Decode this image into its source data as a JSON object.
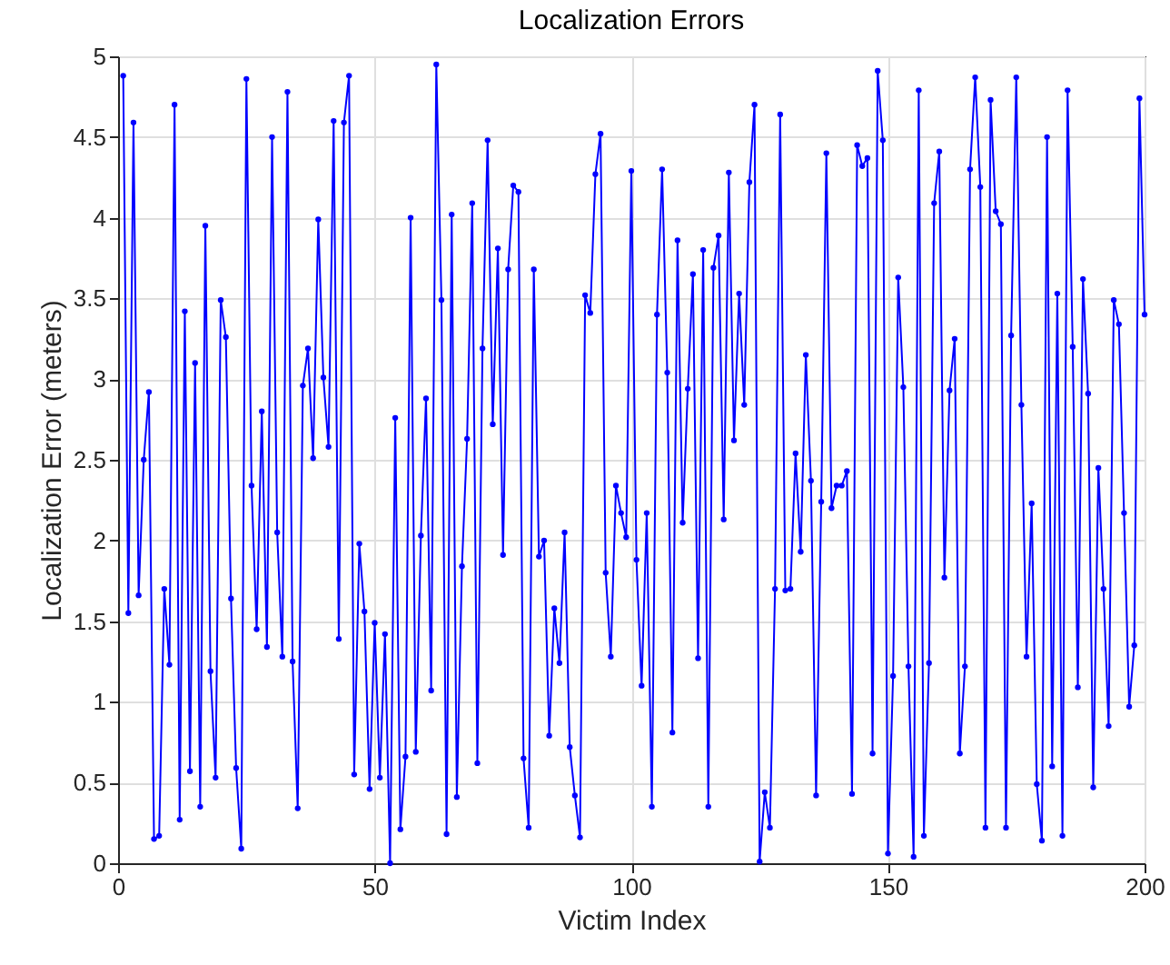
{
  "chart_data": {
    "type": "line",
    "title": "Localization Errors",
    "xlabel": "Victim Index",
    "ylabel": "Localization Error (meters)",
    "x": [
      1,
      2,
      3,
      4,
      5,
      6,
      7,
      8,
      9,
      10,
      11,
      12,
      13,
      14,
      15,
      16,
      17,
      18,
      19,
      20,
      21,
      22,
      23,
      24,
      25,
      26,
      27,
      28,
      29,
      30,
      31,
      32,
      33,
      34,
      35,
      36,
      37,
      38,
      39,
      40,
      41,
      42,
      43,
      44,
      45,
      46,
      47,
      48,
      49,
      50,
      51,
      52,
      53,
      54,
      55,
      56,
      57,
      58,
      59,
      60,
      61,
      62,
      63,
      64,
      65,
      66,
      67,
      68,
      69,
      70,
      71,
      72,
      73,
      74,
      75,
      76,
      77,
      78,
      79,
      80,
      81,
      82,
      83,
      84,
      85,
      86,
      87,
      88,
      89,
      90,
      91,
      92,
      93,
      94,
      95,
      96,
      97,
      98,
      99,
      100,
      101,
      102,
      103,
      104,
      105,
      106,
      107,
      108,
      109,
      110,
      111,
      112,
      113,
      114,
      115,
      116,
      117,
      118,
      119,
      120,
      121,
      122,
      123,
      124,
      125,
      126,
      127,
      128,
      129,
      130,
      131,
      132,
      133,
      134,
      135,
      136,
      137,
      138,
      139,
      140,
      141,
      142,
      143,
      144,
      145,
      146,
      147,
      148,
      149,
      150,
      151,
      152,
      153,
      154,
      155,
      156,
      157,
      158,
      159,
      160,
      161,
      162,
      163,
      164,
      165,
      166,
      167,
      168,
      169,
      170,
      171,
      172,
      173,
      174,
      175,
      176,
      177,
      178,
      179,
      180,
      181,
      182,
      183,
      184,
      185,
      186,
      187,
      188,
      189,
      190,
      191,
      192,
      193,
      194,
      195,
      196,
      197,
      198,
      199,
      200
    ],
    "values": [
      4.88,
      1.55,
      4.59,
      1.66,
      2.5,
      2.92,
      0.15,
      0.17,
      1.7,
      1.23,
      4.7,
      0.27,
      3.42,
      0.57,
      3.1,
      0.35,
      3.95,
      1.19,
      0.53,
      3.49,
      3.26,
      1.64,
      0.59,
      0.09,
      4.86,
      2.34,
      1.45,
      2.8,
      1.34,
      4.5,
      2.05,
      1.28,
      4.78,
      1.25,
      0.34,
      2.96,
      3.19,
      2.51,
      3.99,
      3.01,
      2.58,
      4.6,
      1.39,
      4.59,
      4.88,
      0.55,
      1.98,
      1.56,
      0.46,
      1.49,
      0.53,
      1.42,
      0,
      2.76,
      0.21,
      0.66,
      4.0,
      0.69,
      2.03,
      2.88,
      1.07,
      4.95,
      3.49,
      0.18,
      4.02,
      0.41,
      1.84,
      2.63,
      4.09,
      0.62,
      3.19,
      4.48,
      2.72,
      3.81,
      1.91,
      3.68,
      4.2,
      4.16,
      0.65,
      0.22,
      3.68,
      1.9,
      2.0,
      0.79,
      1.58,
      1.24,
      2.05,
      0.72,
      0.42,
      0.16,
      3.52,
      3.41,
      4.27,
      4.52,
      1.8,
      1.28,
      2.34,
      2.17,
      2.02,
      4.29,
      1.88,
      1.1,
      2.17,
      0.35,
      3.4,
      4.3,
      3.04,
      0.81,
      3.86,
      2.11,
      2.94,
      3.65,
      1.27,
      3.8,
      0.35,
      3.69,
      3.89,
      2.13,
      4.28,
      2.62,
      3.53,
      2.84,
      4.22,
      4.7,
      0.01,
      0.44,
      0.22,
      1.7,
      4.64,
      1.69,
      1.7,
      2.54,
      1.93,
      3.15,
      2.37,
      0.42,
      2.24,
      4.4,
      2.2,
      2.34,
      2.34,
      2.43,
      0.43,
      4.45,
      4.32,
      4.37,
      0.68,
      4.91,
      4.48,
      0.06,
      1.16,
      3.63,
      2.95,
      1.22,
      0.04,
      4.79,
      0.17,
      1.24,
      4.09,
      4.41,
      1.77,
      2.93,
      3.25,
      0.68,
      1.22,
      4.3,
      4.87,
      4.19,
      0.22,
      4.73,
      4.04,
      3.96,
      0.22,
      3.27,
      4.87,
      2.84,
      1.28,
      2.23,
      0.49,
      0.14,
      4.5,
      0.6,
      3.53,
      0.17,
      4.79,
      3.2,
      1.09,
      3.62,
      2.91,
      0.47,
      2.45,
      1.7,
      0.85,
      3.49,
      3.34,
      2.17,
      0.97,
      1.35,
      4.74,
      3.4
    ],
    "color": "#0000ff",
    "xlim": [
      0,
      200
    ],
    "xticks": [
      0,
      50,
      100,
      150,
      200
    ],
    "ylim": [
      0,
      5
    ],
    "yticks": [
      0,
      0.5,
      1,
      1.5,
      2,
      2.5,
      3,
      3.5,
      4,
      4.5,
      5
    ],
    "grid": true,
    "marker": "circle",
    "line_style": "solid"
  }
}
